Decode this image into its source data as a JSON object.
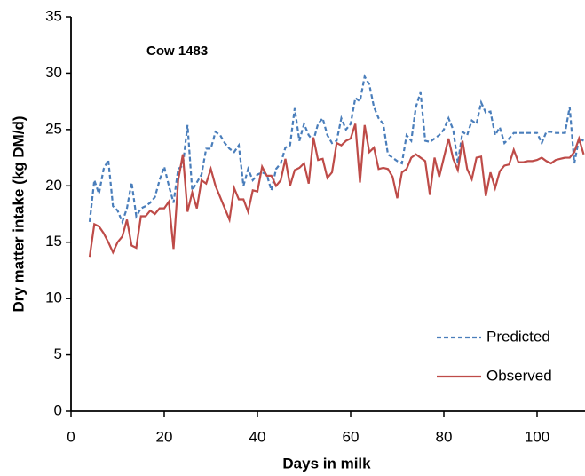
{
  "chart_data": {
    "type": "line",
    "annotation": "Cow 1483",
    "x_label": "Days in milk",
    "y_label": "Dry matter intake (kg DM/d)",
    "x": [
      4,
      5,
      6,
      7,
      8,
      9,
      10,
      11,
      12,
      13,
      14,
      15,
      16,
      17,
      18,
      19,
      20,
      21,
      22,
      23,
      24,
      25,
      26,
      27,
      28,
      29,
      30,
      31,
      32,
      33,
      34,
      35,
      36,
      37,
      38,
      39,
      40,
      41,
      42,
      43,
      44,
      45,
      46,
      47,
      48,
      49,
      50,
      51,
      52,
      53,
      54,
      55,
      56,
      57,
      58,
      59,
      60,
      61,
      62,
      63,
      64,
      65,
      66,
      67,
      68,
      69,
      70,
      71,
      72,
      73,
      74,
      75,
      76,
      77,
      78,
      79,
      80,
      81,
      82,
      83,
      84,
      85,
      86,
      87,
      88,
      89,
      90,
      91,
      92,
      93,
      94,
      95,
      96,
      97,
      98,
      99,
      100,
      101,
      102,
      103,
      104,
      105,
      106,
      107,
      108,
      109,
      110
    ],
    "series": [
      {
        "name": "Predicted",
        "color": "#4a7ebb",
        "dash": true,
        "values": [
          16.8,
          20.5,
          19.3,
          21.5,
          22.3,
          18.2,
          17.8,
          16.8,
          18.0,
          20.3,
          17.3,
          18.0,
          18.2,
          18.5,
          19.0,
          20.5,
          21.7,
          20.0,
          18.5,
          21.5,
          21.8,
          25.4,
          19.6,
          20.3,
          21.0,
          23.3,
          23.3,
          24.8,
          24.5,
          23.8,
          23.3,
          23.0,
          23.6,
          20.0,
          21.5,
          20.5,
          21.0,
          21.2,
          21.0,
          19.6,
          21.5,
          22.0,
          23.4,
          23.6,
          26.9,
          24.0,
          25.5,
          24.5,
          24.0,
          25.5,
          26.0,
          24.5,
          23.8,
          24.0,
          26.0,
          25.0,
          25.5,
          27.8,
          27.5,
          29.7,
          29.0,
          27.0,
          26.0,
          25.5,
          22.8,
          22.5,
          22.2,
          22.0,
          24.5,
          24.0,
          27.0,
          28.3,
          24.0,
          23.9,
          24.2,
          24.5,
          25.0,
          26.0,
          25.0,
          22.0,
          24.8,
          24.5,
          25.8,
          25.5,
          27.4,
          26.5,
          26.6,
          24.5,
          25.2,
          23.8,
          24.2,
          24.7,
          24.7,
          24.7,
          24.7,
          24.7,
          24.7,
          23.8,
          24.8,
          24.8,
          24.7,
          24.7,
          24.7,
          27.0,
          22.0,
          24.2,
          24.0
        ]
      },
      {
        "name": "Observed",
        "color": "#be4b48",
        "dash": false,
        "values": [
          13.7,
          16.6,
          16.4,
          15.8,
          15.0,
          14.1,
          15.0,
          15.5,
          17.0,
          14.7,
          14.5,
          17.3,
          17.3,
          17.8,
          17.5,
          18.0,
          18.0,
          18.6,
          14.4,
          20.5,
          22.8,
          17.7,
          19.4,
          18.0,
          20.5,
          20.2,
          21.5,
          20.0,
          19.0,
          18.0,
          17.0,
          19.8,
          18.8,
          18.8,
          17.7,
          19.6,
          19.5,
          21.7,
          20.9,
          20.9,
          20.0,
          20.5,
          22.4,
          20.0,
          21.4,
          21.6,
          22.0,
          20.2,
          24.3,
          22.3,
          22.4,
          20.7,
          21.2,
          23.8,
          23.6,
          24.0,
          24.2,
          25.5,
          20.3,
          25.4,
          23.0,
          23.4,
          21.5,
          21.6,
          21.5,
          20.8,
          18.9,
          21.2,
          21.5,
          22.5,
          22.8,
          22.5,
          22.2,
          19.2,
          22.5,
          20.8,
          22.5,
          24.2,
          22.4,
          21.4,
          24.0,
          21.5,
          20.6,
          22.5,
          22.6,
          19.1,
          21.2,
          19.8,
          21.3,
          21.8,
          21.9,
          23.2,
          22.1,
          22.1,
          22.2,
          22.2,
          22.3,
          22.5,
          22.2,
          22.0,
          22.3,
          22.4,
          22.5,
          22.5,
          23.0,
          24.2,
          22.8
        ]
      }
    ],
    "xlim": [
      0,
      110
    ],
    "ylim": [
      0,
      35
    ],
    "xticks": [
      0,
      20,
      40,
      60,
      80,
      100
    ],
    "yticks": [
      0,
      5,
      10,
      15,
      20,
      25,
      30,
      35
    ],
    "legend": "lower right"
  }
}
